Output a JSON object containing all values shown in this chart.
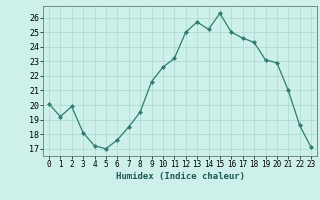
{
  "x": [
    0,
    1,
    2,
    3,
    4,
    5,
    6,
    7,
    8,
    9,
    10,
    11,
    12,
    13,
    14,
    15,
    16,
    17,
    18,
    19,
    20,
    21,
    22,
    23
  ],
  "y": [
    20.1,
    19.2,
    19.9,
    18.1,
    17.2,
    17.0,
    17.6,
    18.5,
    19.5,
    21.6,
    22.6,
    23.2,
    25.0,
    25.7,
    25.2,
    26.3,
    25.0,
    24.6,
    24.3,
    23.1,
    22.9,
    21.0,
    18.6,
    17.1
  ],
  "line_color": "#2e7d6e",
  "marker": "D",
  "marker_size": 2.0,
  "bg_color": "#cef0ea",
  "grid_color": "#aad8d0",
  "xlabel": "Humidex (Indice chaleur)",
  "xlim": [
    -0.5,
    23.5
  ],
  "ylim": [
    16.5,
    26.8
  ],
  "yticks": [
    17,
    18,
    19,
    20,
    21,
    22,
    23,
    24,
    25,
    26
  ],
  "xticks": [
    0,
    1,
    2,
    3,
    4,
    5,
    6,
    7,
    8,
    9,
    10,
    11,
    12,
    13,
    14,
    15,
    16,
    17,
    18,
    19,
    20,
    21,
    22,
    23
  ]
}
